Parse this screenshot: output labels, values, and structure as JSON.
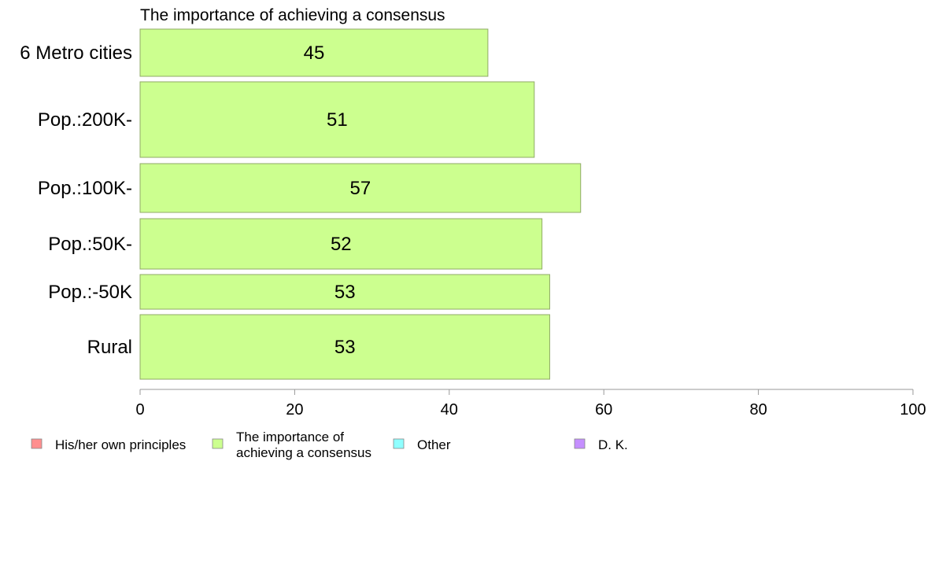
{
  "chart_data": {
    "type": "bar",
    "orientation": "horizontal",
    "title": "The importance of achieving a consensus",
    "categories": [
      "6 Metro cities",
      "Pop.:200K-",
      "Pop.:100K-",
      "Pop.:50K-",
      "Pop.:-50K",
      "Rural"
    ],
    "series": [
      {
        "name": "The importance of achieving a consensus",
        "values": [
          45,
          51,
          57,
          52,
          53,
          53
        ]
      }
    ],
    "bar_labels": [
      "45",
      "51",
      "57",
      "52",
      "53",
      "53"
    ],
    "xlim": [
      0,
      100
    ],
    "xticks": [
      0,
      20,
      40,
      60,
      80,
      100
    ],
    "grid": false,
    "legend_position": "bottom",
    "legend": [
      {
        "label_lines": [
          "His/her own principles"
        ],
        "color": "#ff8f8f"
      },
      {
        "label_lines": [
          "The importance of",
          "achieving a consensus"
        ],
        "color": "#ccff8f"
      },
      {
        "label_lines": [
          "Other"
        ],
        "color": "#8fffff"
      },
      {
        "label_lines": [
          "D. K."
        ],
        "color": "#c58fff"
      }
    ],
    "bar_color": "#ccff8f",
    "bar_edge_color": "#8faa66",
    "axis_color": "#999999"
  }
}
